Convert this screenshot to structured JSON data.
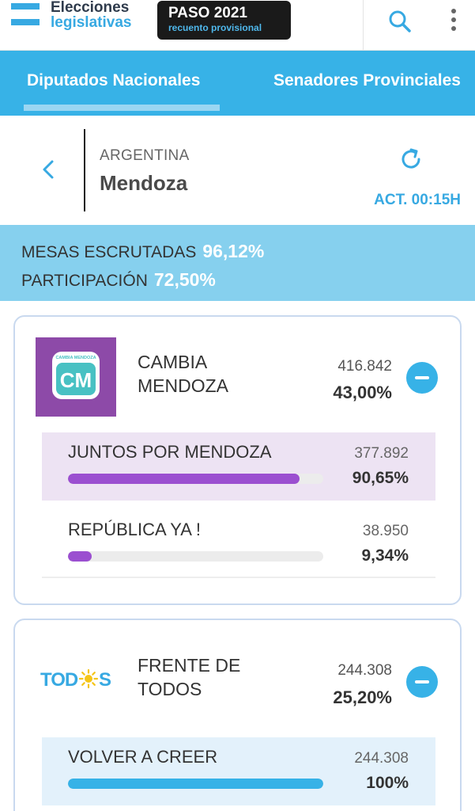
{
  "header": {
    "logo_line1": "Elecciones",
    "logo_line2": "legislativas",
    "badge_title": "PASO 2021",
    "badge_subtitle": "recuento provisional",
    "icons": [
      "search-icon",
      "more-vertical-icon"
    ]
  },
  "tabs": [
    {
      "label": "Diputados Nacionales",
      "active": true
    },
    {
      "label": "Senadores Provinciales",
      "active": false
    }
  ],
  "location": {
    "country": "ARGENTINA",
    "province": "Mendoza",
    "update_label": "ACT. 00:15H"
  },
  "stats": {
    "mesas_label": "MESAS ESCRUTADAS",
    "mesas_value": "96,12%",
    "participacion_label": "PARTICIPACIÓN",
    "participacion_value": "72,50%"
  },
  "parties": [
    {
      "name_line1": "CAMBIA",
      "name_line2": "MENDOZA",
      "logo_text": "CM",
      "logo_subtext": "CAMBIA MENDOZA",
      "votes": "416.842",
      "pct": "43,00%",
      "color": "#8d4aa8",
      "lists": [
        {
          "name": "JUNTOS POR MENDOZA",
          "votes": "377.892",
          "pct": "90,65%",
          "share": 0.9065,
          "color": "#9b4fd0",
          "highlight": "#ede3f3"
        },
        {
          "name": "REPÚBLICA YA !",
          "votes": "38.950",
          "pct": "9,34%",
          "share": 0.0934,
          "color": "#9b4fd0",
          "highlight": "#ffffff"
        }
      ]
    },
    {
      "name_line1": "FRENTE DE",
      "name_line2": "TODOS",
      "logo_text": "TODOS",
      "votes": "244.308",
      "pct": "25,20%",
      "color": "#37b2e7",
      "lists": [
        {
          "name": "VOLVER A CREER",
          "votes": "244.308",
          "pct": "100%",
          "share": 1.0,
          "color": "#37b2e7",
          "highlight": "#e3f1fb"
        }
      ]
    }
  ]
}
